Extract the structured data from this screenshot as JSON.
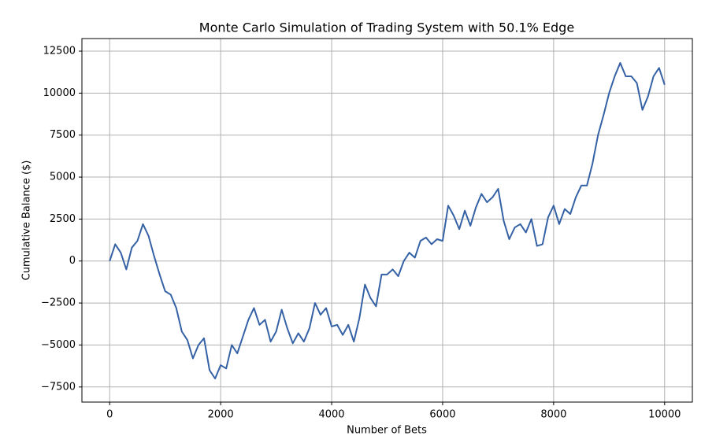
{
  "chart_data": {
    "type": "line",
    "title": "Monte Carlo Simulation of Trading System with 50.1% Edge",
    "x_label": "Number of Bets",
    "y_label": "Cumulative Balance ($)",
    "color": "#3561a5",
    "grid": true,
    "xlim": [
      -500,
      10500
    ],
    "ylim": [
      -8400,
      13250
    ],
    "xticks": [
      0,
      2000,
      4000,
      6000,
      8000,
      10000
    ],
    "yticks": [
      {
        "value": -7500,
        "label": "−7500"
      },
      {
        "value": -5000,
        "label": "−5000"
      },
      {
        "value": -2500,
        "label": "−2500"
      },
      0,
      2500,
      5000,
      7500,
      10000,
      12500
    ],
    "x": [
      0,
      100,
      200,
      300,
      400,
      500,
      600,
      700,
      800,
      900,
      1000,
      1100,
      1200,
      1300,
      1400,
      1500,
      1600,
      1700,
      1800,
      1900,
      2000,
      2100,
      2200,
      2300,
      2400,
      2500,
      2600,
      2700,
      2800,
      2900,
      3000,
      3100,
      3200,
      3300,
      3400,
      3500,
      3600,
      3700,
      3800,
      3900,
      4000,
      4100,
      4200,
      4300,
      4400,
      4500,
      4600,
      4700,
      4800,
      4900,
      5000,
      5100,
      5200,
      5300,
      5400,
      5500,
      5600,
      5700,
      5800,
      5900,
      6000,
      6100,
      6200,
      6300,
      6400,
      6500,
      6600,
      6700,
      6800,
      6900,
      7000,
      7100,
      7200,
      7300,
      7400,
      7500,
      7600,
      7700,
      7800,
      7900,
      8000,
      8100,
      8200,
      8300,
      8400,
      8500,
      8600,
      8700,
      8800,
      8900,
      9000,
      9100,
      9200,
      9300,
      9400,
      9500,
      9600,
      9700,
      9800,
      9900,
      10000
    ],
    "values": [
      0,
      1000,
      500,
      -500,
      800,
      1200,
      2200,
      1500,
      300,
      -800,
      -1800,
      -2000,
      -2800,
      -4200,
      -4700,
      -5800,
      -5000,
      -4600,
      -6500,
      -7000,
      -6200,
      -6400,
      -5000,
      -5500,
      -4500,
      -3500,
      -2800,
      -3800,
      -3500,
      -4800,
      -4200,
      -2900,
      -4000,
      -4900,
      -4300,
      -4800,
      -4000,
      -2500,
      -3200,
      -2800,
      -3900,
      -3800,
      -4400,
      -3800,
      -4800,
      -3400,
      -1400,
      -2200,
      -2700,
      -800,
      -800,
      -500,
      -900,
      0,
      500,
      200,
      1200,
      1400,
      1000,
      1300,
      1200,
      3300,
      2700,
      1900,
      3000,
      2100,
      3200,
      4000,
      3500,
      3800,
      4300,
      2400,
      1300,
      2000,
      2200,
      1700,
      2500,
      900,
      1000,
      2600,
      3300,
      2200,
      3100,
      2800,
      3800,
      4500,
      4500,
      5800,
      7500,
      8700,
      10000,
      11000,
      11800,
      11000,
      11000,
      10600,
      9000,
      9800,
      11000,
      11500,
      10500
    ]
  }
}
